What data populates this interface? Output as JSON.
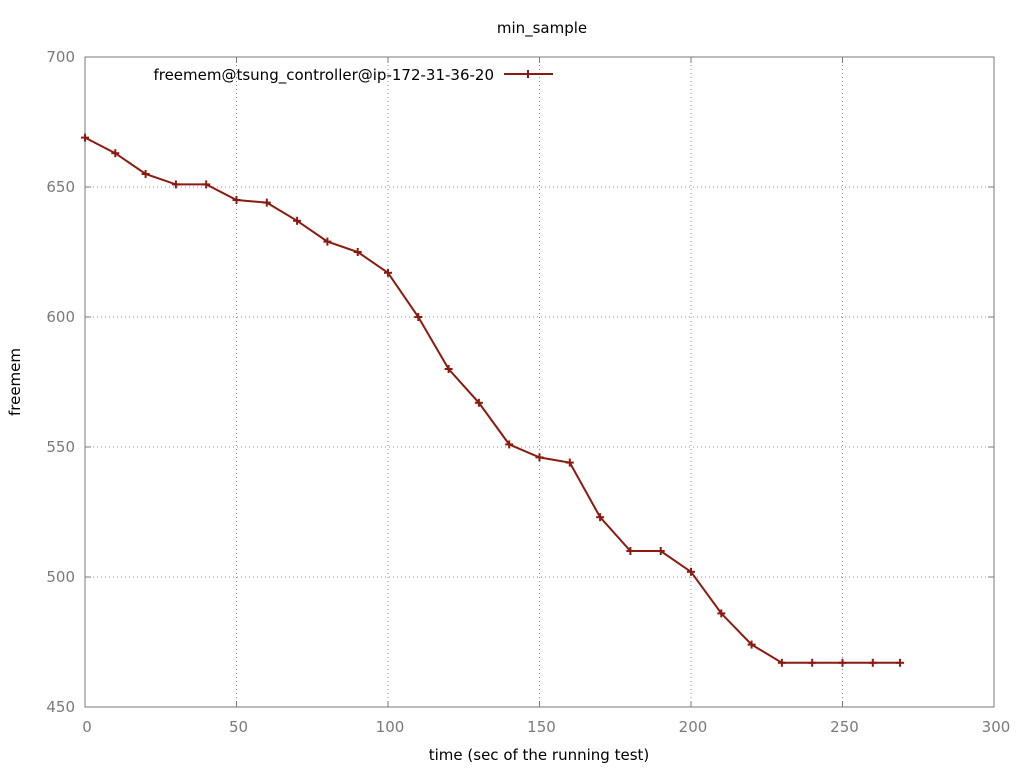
{
  "chart_data": {
    "type": "line",
    "title": "min_sample",
    "xlabel": "time (sec of the running test)",
    "ylabel": "freemem",
    "xlim": [
      0,
      300
    ],
    "ylim": [
      450,
      700
    ],
    "xticks": [
      0,
      50,
      100,
      150,
      200,
      250,
      300
    ],
    "yticks": [
      450,
      500,
      550,
      600,
      650,
      700
    ],
    "xtick_labels": [
      "0",
      "50",
      "100",
      "150",
      "200",
      "250",
      "300"
    ],
    "ytick_labels": [
      "450",
      "500",
      "550",
      "600",
      "650",
      "700"
    ],
    "grid": true,
    "legend_position": "top-left",
    "series": [
      {
        "name": "freemem@tsung_controller@ip-172-31-36-20",
        "color": "#8b1a10",
        "marker": "plus",
        "x": [
          0,
          10,
          20,
          30,
          40,
          50,
          60,
          70,
          80,
          90,
          100,
          110,
          120,
          130,
          140,
          150,
          160,
          170,
          180,
          190,
          200,
          210,
          220,
          230,
          240,
          250,
          260,
          269
        ],
        "y": [
          669,
          663,
          655,
          651,
          651,
          645,
          644,
          637,
          629,
          625,
          617,
          600,
          580,
          567,
          551,
          546,
          544,
          523,
          510,
          510,
          502,
          486,
          474,
          467,
          467,
          467,
          467,
          467
        ]
      }
    ]
  }
}
